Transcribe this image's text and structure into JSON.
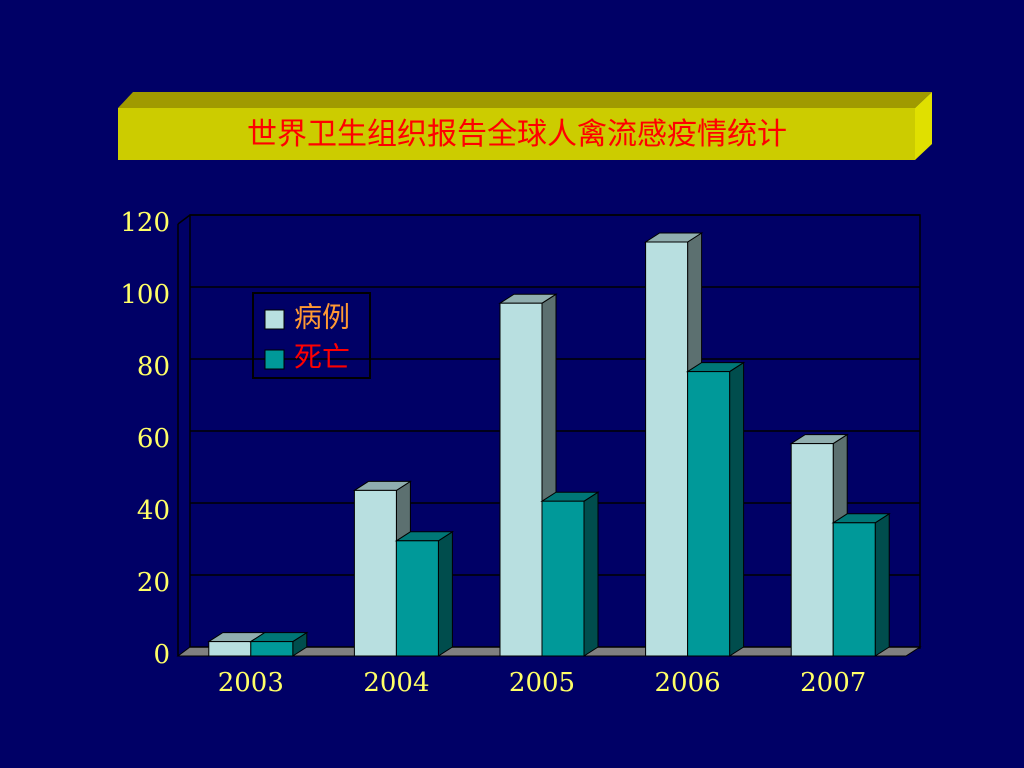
{
  "chart_data": {
    "type": "bar3d",
    "title": "世界卫生组织报告全球人禽流感疫情统计",
    "categories": [
      "2003",
      "2004",
      "2005",
      "2006",
      "2007"
    ],
    "series": [
      {
        "name": "病例",
        "color": "#b8dfe0",
        "values": [
          4,
          46,
          98,
          115,
          59
        ]
      },
      {
        "name": "死亡",
        "color": "#009999",
        "values": [
          4,
          32,
          43,
          79,
          37
        ]
      }
    ],
    "ylim": [
      0,
      120
    ],
    "yticks": [
      0,
      20,
      40,
      60,
      80,
      100,
      120
    ],
    "grid": true
  }
}
